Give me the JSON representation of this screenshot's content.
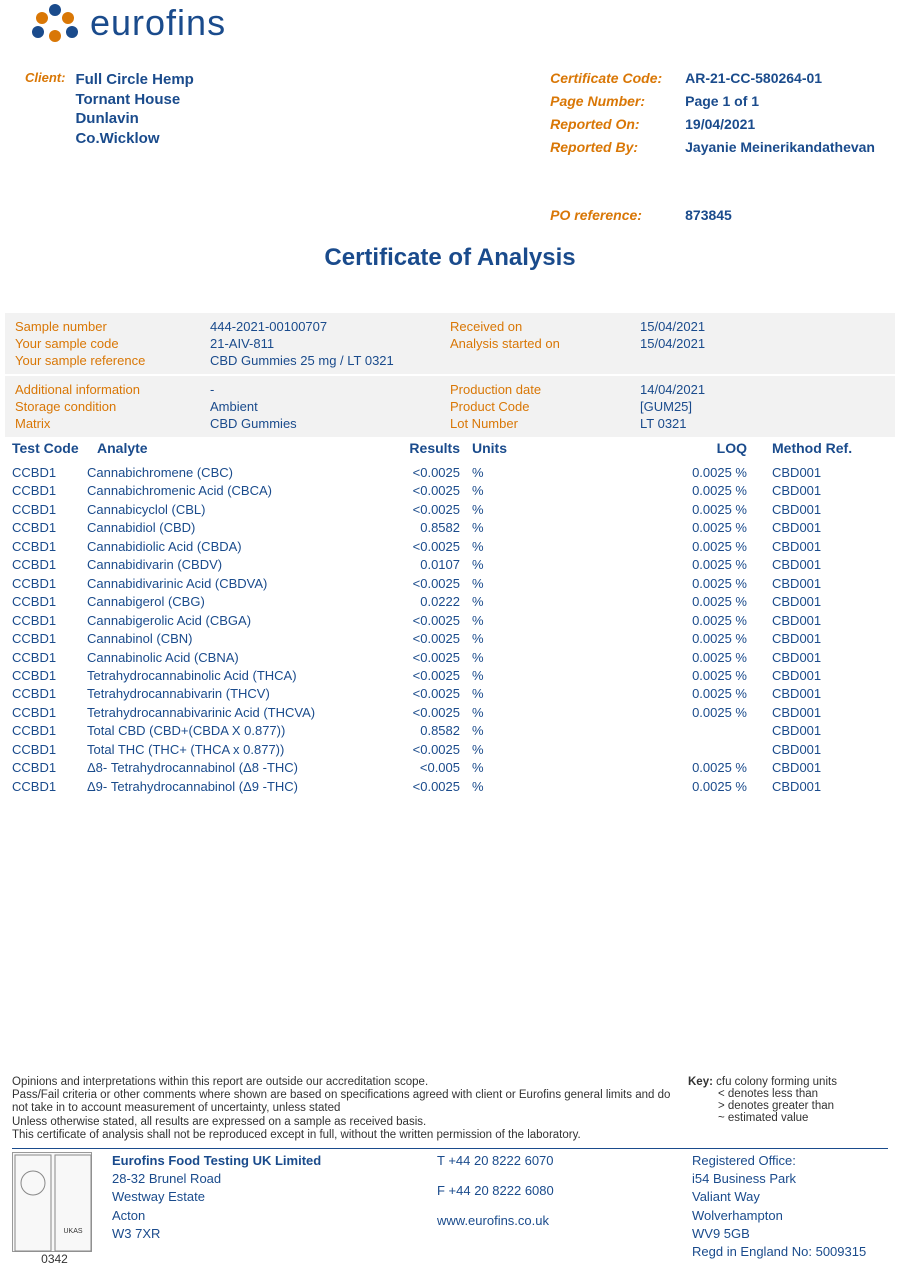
{
  "logo": {
    "text": "eurofins"
  },
  "client": {
    "label": "Client:",
    "lines": [
      "Full Circle Hemp",
      "Tornant House",
      "Dunlavin",
      "Co.Wicklow"
    ]
  },
  "header_right": {
    "certificate_code": {
      "label": "Certificate Code:",
      "value": "AR-21-CC-580264-01"
    },
    "page_number": {
      "label": "Page Number:",
      "value": "Page 1 of 1"
    },
    "reported_on": {
      "label": "Reported On:",
      "value": "19/04/2021"
    },
    "reported_by": {
      "label": "Reported By:",
      "value": "Jayanie Meinerikandathevan"
    },
    "po_reference": {
      "label": "PO reference:",
      "value": "873845"
    }
  },
  "title": "Certificate of Analysis",
  "band1": {
    "sample_number": {
      "label": "Sample number",
      "value": "444-2021-00100707"
    },
    "received_on": {
      "label": "Received on",
      "value": "15/04/2021"
    },
    "sample_code": {
      "label": "Your sample code",
      "value": "21-AIV-811"
    },
    "analysis_started": {
      "label": "Analysis started on",
      "value": "15/04/2021"
    },
    "sample_ref": {
      "label": "Your sample reference",
      "value": "CBD Gummies 25 mg / LT 0321"
    }
  },
  "band2": {
    "additional_info": {
      "label": "Additional information",
      "value": "-"
    },
    "production_date": {
      "label": "Production date",
      "value": "14/04/2021"
    },
    "storage": {
      "label": "Storage condition",
      "value": "Ambient"
    },
    "product_code": {
      "label": "Product Code",
      "value": "[GUM25]"
    },
    "matrix": {
      "label": "Matrix",
      "value": "CBD Gummies"
    },
    "lot_number": {
      "label": "Lot Number",
      "value": "LT 0321"
    }
  },
  "table": {
    "headers": {
      "test_code": "Test Code",
      "analyte": "Analyte",
      "results": "Results",
      "units": "Units",
      "loq": "LOQ",
      "method": "Method Ref."
    },
    "rows": [
      {
        "tc": "CCBD1",
        "an": "Cannabichromene (CBC)",
        "res": "<0.0025",
        "un": "%",
        "loq": "0.0025 %",
        "mr": "CBD001"
      },
      {
        "tc": "CCBD1",
        "an": "Cannabichromenic Acid (CBCA)",
        "res": "<0.0025",
        "un": "%",
        "loq": "0.0025 %",
        "mr": "CBD001"
      },
      {
        "tc": "CCBD1",
        "an": "Cannabicyclol (CBL)",
        "res": "<0.0025",
        "un": "%",
        "loq": "0.0025 %",
        "mr": "CBD001"
      },
      {
        "tc": "CCBD1",
        "an": "Cannabidiol (CBD)",
        "res": "0.8582",
        "un": "%",
        "loq": "0.0025 %",
        "mr": "CBD001"
      },
      {
        "tc": "CCBD1",
        "an": "Cannabidiolic Acid (CBDA)",
        "res": "<0.0025",
        "un": "%",
        "loq": "0.0025 %",
        "mr": "CBD001"
      },
      {
        "tc": "CCBD1",
        "an": "Cannabidivarin (CBDV)",
        "res": "0.0107",
        "un": "%",
        "loq": "0.0025 %",
        "mr": "CBD001"
      },
      {
        "tc": "CCBD1",
        "an": "Cannabidivarinic Acid (CBDVA)",
        "res": "<0.0025",
        "un": "%",
        "loq": "0.0025 %",
        "mr": "CBD001"
      },
      {
        "tc": "CCBD1",
        "an": "Cannabigerol (CBG)",
        "res": "0.0222",
        "un": "%",
        "loq": "0.0025 %",
        "mr": "CBD001"
      },
      {
        "tc": "CCBD1",
        "an": "Cannabigerolic Acid (CBGA)",
        "res": "<0.0025",
        "un": "%",
        "loq": "0.0025 %",
        "mr": "CBD001"
      },
      {
        "tc": "CCBD1",
        "an": "Cannabinol (CBN)",
        "res": "<0.0025",
        "un": "%",
        "loq": "0.0025 %",
        "mr": "CBD001"
      },
      {
        "tc": "CCBD1",
        "an": "Cannabinolic Acid (CBNA)",
        "res": "<0.0025",
        "un": "%",
        "loq": "0.0025 %",
        "mr": "CBD001"
      },
      {
        "tc": "CCBD1",
        "an": "Tetrahydrocannabinolic Acid (THCA)",
        "res": "<0.0025",
        "un": "%",
        "loq": "0.0025 %",
        "mr": "CBD001"
      },
      {
        "tc": "CCBD1",
        "an": "Tetrahydrocannabivarin (THCV)",
        "res": "<0.0025",
        "un": "%",
        "loq": "0.0025 %",
        "mr": "CBD001"
      },
      {
        "tc": "CCBD1",
        "an": "Tetrahydrocannabivarinic Acid (THCVA)",
        "res": "<0.0025",
        "un": "%",
        "loq": "0.0025 %",
        "mr": "CBD001"
      },
      {
        "tc": "CCBD1",
        "an": "Total CBD (CBD+(CBDA X 0.877))",
        "res": "0.8582",
        "un": "%",
        "loq": "",
        "mr": "CBD001"
      },
      {
        "tc": "CCBD1",
        "an": "Total THC (THC+ (THCA x 0.877))",
        "res": "<0.0025",
        "un": "%",
        "loq": "",
        "mr": "CBD001"
      },
      {
        "tc": "CCBD1",
        "an": "Δ8- Tetrahydrocannabinol (Δ8 -THC)",
        "res": "<0.005",
        "un": "%",
        "loq": "0.0025 %",
        "mr": "CBD001"
      },
      {
        "tc": "CCBD1",
        "an": "Δ9- Tetrahydrocannabinol (Δ9 -THC)",
        "res": "<0.0025",
        "un": "%",
        "loq": "0.0025 %",
        "mr": "CBD001"
      }
    ]
  },
  "disclaimer": {
    "lines": [
      "Opinions and interpretations within this report are outside our accreditation scope.",
      "Pass/Fail criteria or other comments where shown are based on specifications agreed with client or Eurofins general limits and do not take in to account measurement of uncertainty, unless stated",
      "Unless otherwise stated, all results are expressed on a sample as received basis.",
      "This certificate of analysis shall not be reproduced except in full, without the written permission of the laboratory."
    ],
    "key_label": "Key:",
    "key_first": "cfu colony forming units",
    "key_lines": [
      "< denotes less than",
      "> denotes greater than",
      "~ estimated value"
    ]
  },
  "footer": {
    "accred_num": "0342",
    "company": {
      "name": "Eurofins Food Testing UK Limited",
      "lines": [
        "28-32 Brunel Road",
        "Westway Estate",
        "Acton",
        "W3 7XR"
      ]
    },
    "contact": {
      "tel": "T  +44 20 8222 6070",
      "fax": "F  +44 20 8222 6080",
      "web": "www.eurofins.co.uk"
    },
    "office": {
      "title": "Registered Office:",
      "lines": [
        "i54 Business Park",
        "Valiant Way",
        "Wolverhampton",
        "WV9 5GB",
        "Regd in England No: 5009315"
      ]
    }
  },
  "colors": {
    "primary_blue": "#1a4b8c",
    "orange": "#d97706",
    "band_bg": "#f2f2f2"
  }
}
